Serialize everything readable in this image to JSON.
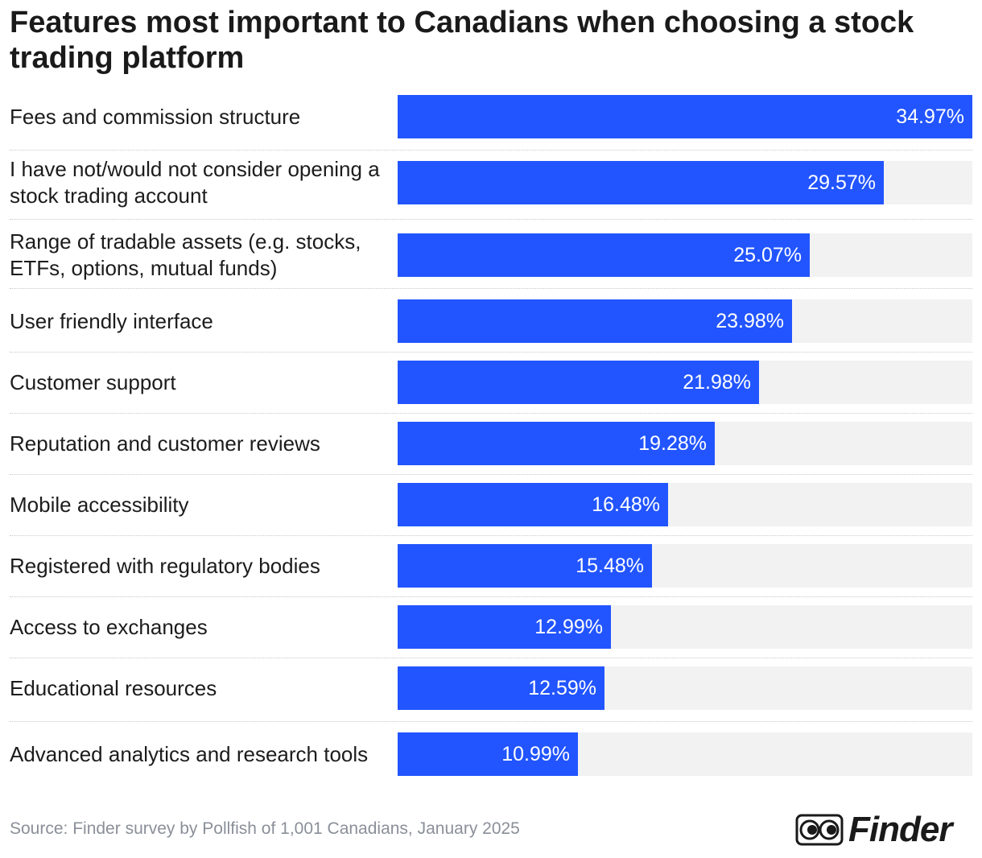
{
  "chart_data": {
    "type": "bar",
    "orientation": "horizontal",
    "title": "Features most important to Canadians when choosing a stock trading platform",
    "categories": [
      "Fees and commission structure",
      "I have not/would not consider opening a stock trading account",
      "Range of tradable assets (e.g. stocks, ETFs, options, mutual funds)",
      "User friendly interface",
      "Customer support",
      "Reputation and customer reviews",
      "Mobile accessibility",
      "Registered with regulatory bodies",
      "Access to exchanges",
      "Educational resources",
      "Advanced analytics and research tools"
    ],
    "values": [
      34.97,
      29.57,
      25.07,
      23.98,
      21.98,
      19.28,
      16.48,
      15.48,
      12.99,
      12.59,
      10.99
    ],
    "value_labels": [
      "34.97%",
      "29.57%",
      "25.07%",
      "23.98%",
      "21.98%",
      "19.28%",
      "16.48%",
      "15.48%",
      "12.99%",
      "12.59%",
      "10.99%"
    ],
    "xlim": [
      0,
      34.97
    ],
    "unit": "%",
    "bar_color": "#2255ff",
    "track_color": "#f2f2f2",
    "grid": false
  },
  "source": "Source: Finder survey by Pollfish of 1,001 Canadians, January 2025",
  "logo": {
    "icon": "eyes-icon",
    "text": "Finder"
  }
}
